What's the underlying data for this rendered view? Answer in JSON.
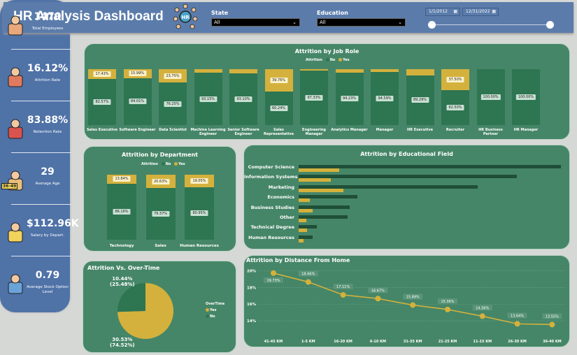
{
  "header": {
    "title": "HR Analysis Dashboard",
    "icon": "hr-team-icon",
    "state_label": "State",
    "state_value": "All",
    "education_label": "Education",
    "education_value": "All",
    "date_start": "1/1/2012",
    "date_end": "12/31/2022"
  },
  "kpis": [
    {
      "value": "1470",
      "label": "Total Employees",
      "icon": "employee-icon"
    },
    {
      "value": "16.12%",
      "label": "Attrition Rate",
      "icon": "leaving-employee-icon"
    },
    {
      "value": "83.88%",
      "label": "Retention Rate",
      "icon": "retention-icon"
    },
    {
      "value": "29",
      "label": "Average Age",
      "icon": "age-icon",
      "badge": "36-49"
    },
    {
      "value": "$112.96K",
      "label": "Salary by Depart.",
      "icon": "salary-envelope-icon"
    },
    {
      "value": "0.79",
      "label": "Average Stock Option Level",
      "icon": "stock-monitor-icon"
    }
  ],
  "colors": {
    "no": "#2e7552",
    "yes": "#d4b13c",
    "panel": "#468668",
    "blue": "#4f72a7"
  },
  "chart_data": [
    {
      "id": "job_role",
      "type": "bar",
      "stacked": true,
      "title": "Attrition by Job Role",
      "legend_title": "Attrition",
      "legend": [
        "No",
        "Yes"
      ],
      "categories": [
        "Sales Executive",
        "Software Engineer",
        "Data Scientist",
        "Machine Learning Engineer",
        "Senior Software Engineer",
        "Sales Representative",
        "Engineering Manager",
        "Analytics Manager",
        "Manager",
        "HR Executive",
        "Recruiter",
        "HR Business Partner",
        "HR Manager"
      ],
      "series": [
        {
          "name": "No",
          "values": [
            82.57,
            84.01,
            76.25,
            93.15,
            93.1,
            60.24,
            97.33,
            94.23,
            94.59,
            89.29,
            62.5,
            100.0,
            100.0
          ]
        },
        {
          "name": "Yes",
          "values": [
            17.43,
            15.99,
            23.75,
            6.85,
            6.9,
            39.76,
            2.67,
            5.77,
            5.41,
            10.71,
            37.5,
            0,
            0
          ]
        }
      ],
      "yes_labels_shown": [
        true,
        true,
        true,
        false,
        false,
        true,
        false,
        false,
        false,
        false,
        true,
        false,
        false
      ]
    },
    {
      "id": "department",
      "type": "bar",
      "stacked": true,
      "title": "Attrition by Department",
      "legend_title": "Attrition",
      "legend": [
        "No",
        "Yes"
      ],
      "categories": [
        "Technology",
        "Sales",
        "Human Resources"
      ],
      "series": [
        {
          "name": "No",
          "values": [
            86.16,
            79.37,
            80.95
          ]
        },
        {
          "name": "Yes",
          "values": [
            13.84,
            20.63,
            19.05
          ]
        }
      ]
    },
    {
      "id": "education_field",
      "type": "bar",
      "orientation": "horizontal",
      "title": "Attrition by Educational Field",
      "categories": [
        "Computer Science",
        "Information Systems",
        "Marketing",
        "Economics",
        "Business Studies",
        "Other",
        "Technical Degree",
        "Human Resources"
      ],
      "series": [
        {
          "name": "No",
          "values": [
            381,
            317,
            260,
            85,
            74,
            71,
            26,
            20
          ]
        },
        {
          "name": "Yes",
          "values": [
            59,
            47,
            65,
            16,
            20,
            11,
            12,
            7
          ]
        }
      ]
    },
    {
      "id": "overtime",
      "type": "pie",
      "title": "Attrition Vs. Over-Time",
      "legend_title": "OverTime",
      "slices": [
        {
          "name": "Yes",
          "value": 74.52,
          "label": "30.53%",
          "sublabel": "(74.52%)"
        },
        {
          "name": "No",
          "value": 25.48,
          "label": "10.44%",
          "sublabel": "(25.48%)"
        }
      ]
    },
    {
      "id": "distance",
      "type": "line",
      "title": "Attrition by Distance From Home",
      "categories": [
        "41-45 KM",
        "1-5 KM",
        "16-20 KM",
        "6-10 KM",
        "31-35 KM",
        "21-25 KM",
        "11-15 KM",
        "26-30 KM",
        "36-40 KM"
      ],
      "values": [
        19.73,
        18.66,
        17.11,
        16.67,
        15.89,
        15.36,
        14.56,
        13.64,
        13.55
      ],
      "labels": [
        "19.73%",
        "18.66%",
        "17.11%",
        "16.67%",
        "15.89%",
        "15.36%",
        "14.56%",
        "13.64%",
        "13.55%"
      ],
      "yticks": [
        "20%",
        "18%",
        "16%",
        "14%"
      ],
      "ytick_values": [
        20,
        18,
        16,
        14
      ],
      "ylim": [
        13,
        20.3
      ],
      "grid": true
    }
  ]
}
